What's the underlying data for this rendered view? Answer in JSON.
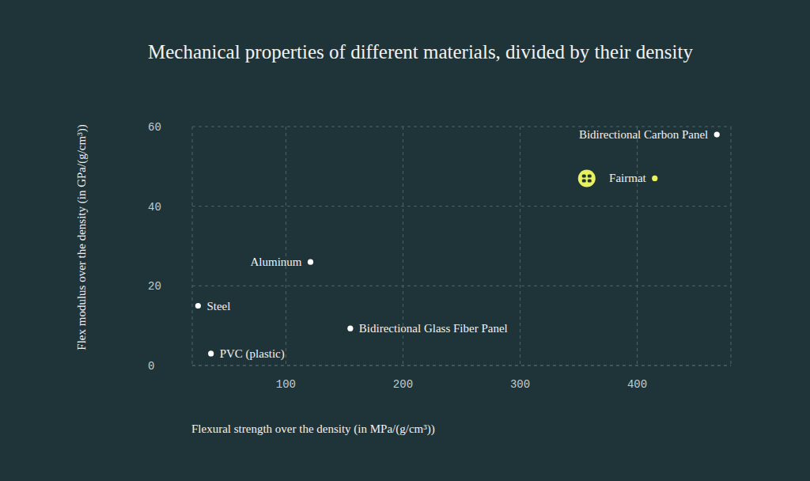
{
  "chart_data": {
    "type": "scatter",
    "title": "Mechanical properties of different materials, divided by their density",
    "x_label": "Flexural strength over the density (in MPa/(g/cm³))",
    "y_label": "Flex modulus over the density (in GPa/(g/cm³))",
    "point_labels": [
      "Bidirectional Carbon Panel",
      "Fairmat",
      "Aluminum",
      "Steel",
      "Bidirectional Glass Fiber Panel",
      "PVC (plastic)"
    ],
    "x": [
      468,
      415,
      121,
      25,
      155,
      36
    ],
    "values": [
      58,
      47,
      26,
      15,
      9.3,
      3
    ],
    "colors": [
      "#ffffff",
      "#e8f25c",
      "#ffffff",
      "#ffffff",
      "#ffffff",
      "#ffffff"
    ],
    "xlim": [
      20,
      480
    ],
    "ylim": [
      0,
      60
    ],
    "xticks": [
      100,
      200,
      300,
      400
    ],
    "yticks": [
      0,
      20,
      40,
      60
    ],
    "grid": true
  }
}
